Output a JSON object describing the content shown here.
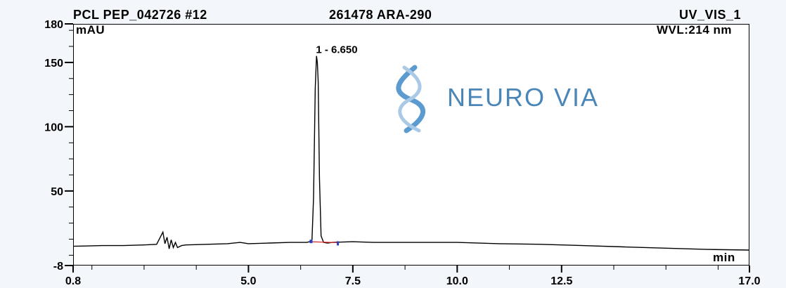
{
  "header": {
    "sample_name": "PCL PEP_042726 #12",
    "sample_id": "261478 ARA-290",
    "channel": "UV_VIS_1",
    "wavelength": "WVL:214 nm"
  },
  "logo": {
    "text": "NEURO VIA",
    "icon": "dna-helix-icon"
  },
  "chart_data": {
    "type": "line",
    "xlabel": "min",
    "ylabel": "mAU",
    "xlim": [
      0.8,
      17.0
    ],
    "ylim": [
      -8,
      180
    ],
    "x_ticks": [
      "0.8",
      "5.0",
      "7.5",
      "10.0",
      "12.5",
      "17.0"
    ],
    "x_tick_values": [
      0.8,
      5.0,
      7.5,
      10.0,
      12.5,
      17.0
    ],
    "y_ticks": [
      "180",
      "150",
      "100",
      "50",
      "-8"
    ],
    "y_tick_values": [
      180,
      150,
      100,
      50,
      -8
    ],
    "peaks": [
      {
        "label": "1 - 6.650",
        "retention_time": 6.65,
        "height": 155
      }
    ],
    "series": [
      {
        "x": [
          0.8,
          1.5,
          2.0,
          2.5,
          2.8,
          2.95,
          3.0,
          3.05,
          3.1,
          3.15,
          3.2,
          3.25,
          3.3,
          3.4,
          3.5,
          4.0,
          4.5,
          4.8,
          5.0,
          5.5,
          6.0,
          6.4,
          6.52,
          6.56,
          6.6,
          6.63,
          6.65,
          6.67,
          6.7,
          6.74,
          6.8,
          6.9,
          7.0,
          7.5,
          8.0,
          9.0,
          10.0,
          11.0,
          12.0,
          13.0,
          14.0,
          15.0,
          16.0,
          17.0
        ],
        "y": [
          7,
          7.5,
          7.5,
          8,
          8.5,
          18,
          9,
          14,
          5,
          12,
          6,
          10,
          6,
          7.5,
          8,
          8.5,
          9,
          10,
          9,
          9.5,
          10,
          10,
          11,
          45,
          130,
          155,
          150,
          135,
          60,
          15,
          10,
          9.5,
          10,
          10.5,
          10,
          10,
          10,
          9,
          8.5,
          7.5,
          6.5,
          5.5,
          4.5,
          4
        ]
      }
    ]
  }
}
